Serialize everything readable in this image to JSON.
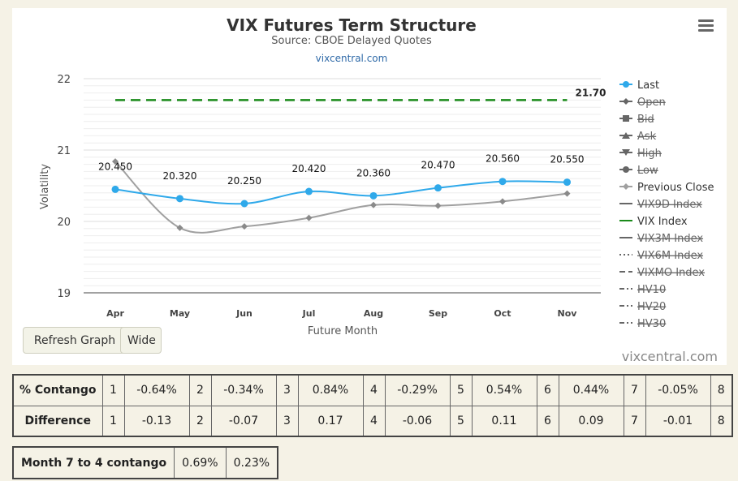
{
  "chart_data": {
    "type": "line",
    "title": "VIX Futures Term Structure",
    "subtitle": "Source: CBOE Delayed Quotes",
    "credit_link": "vixcentral.com",
    "watermark": "vixcentral.com",
    "xlabel": "Future Month",
    "ylabel": "Volatility",
    "categories": [
      "Apr",
      "May",
      "Jun",
      "Jul",
      "Aug",
      "Sep",
      "Oct",
      "Nov"
    ],
    "ylim": [
      19,
      22
    ],
    "yticks": [
      19,
      20,
      21,
      22
    ],
    "grid": true,
    "legend_position": "right",
    "series": [
      {
        "name": "Last",
        "values": [
          20.45,
          20.32,
          20.25,
          20.42,
          20.36,
          20.47,
          20.56,
          20.55
        ],
        "labels": [
          "20.450",
          "20.320",
          "20.250",
          "20.420",
          "20.360",
          "20.470",
          "20.560",
          "20.550"
        ],
        "color": "#2fa9ea"
      },
      {
        "name": "Previous Close",
        "values": [
          20.84,
          19.91,
          19.93,
          20.05,
          20.23,
          20.22,
          20.28,
          20.39
        ],
        "color": "#a0a0a0"
      },
      {
        "name": "VIX Index",
        "value": 21.7,
        "value_label": "21.70",
        "color": "#1a8a1a"
      }
    ],
    "legend": [
      {
        "name": "Last",
        "symbol": "circle",
        "style": "solid",
        "color": "#2fa9ea",
        "hidden": false
      },
      {
        "name": "Open",
        "symbol": "diamond",
        "style": "solid",
        "color": "#666666",
        "hidden": true
      },
      {
        "name": "Bid",
        "symbol": "square",
        "style": "solid",
        "color": "#666666",
        "hidden": true
      },
      {
        "name": "Ask",
        "symbol": "triangle",
        "style": "solid",
        "color": "#666666",
        "hidden": true
      },
      {
        "name": "High",
        "symbol": "triangle-down",
        "style": "solid",
        "color": "#666666",
        "hidden": true
      },
      {
        "name": "Low",
        "symbol": "circle",
        "style": "solid",
        "color": "#666666",
        "hidden": true
      },
      {
        "name": "Previous Close",
        "symbol": "diamond",
        "style": "solid",
        "color": "#a0a0a0",
        "hidden": false
      },
      {
        "name": "VIX9D Index",
        "symbol": "none",
        "style": "solid",
        "color": "#666666",
        "hidden": true
      },
      {
        "name": "VIX Index",
        "symbol": "none",
        "style": "solid",
        "color": "#1a8a1a",
        "hidden": false
      },
      {
        "name": "VIX3M Index",
        "symbol": "none",
        "style": "solid",
        "color": "#666666",
        "hidden": true
      },
      {
        "name": "VIX6M Index",
        "symbol": "none",
        "style": "dotted",
        "color": "#666666",
        "hidden": true
      },
      {
        "name": "VIXMO Index",
        "symbol": "none",
        "style": "dashed",
        "color": "#666666",
        "hidden": true
      },
      {
        "name": "HV10",
        "symbol": "none",
        "style": "dashdot",
        "color": "#666666",
        "hidden": true
      },
      {
        "name": "HV20",
        "symbol": "none",
        "style": "dashdot",
        "color": "#666666",
        "hidden": true
      },
      {
        "name": "HV30",
        "symbol": "none",
        "style": "dashdot",
        "color": "#666666",
        "hidden": true
      }
    ]
  },
  "buttons": {
    "refresh": "Refresh Graph",
    "wide": "Wide"
  },
  "contango_table": {
    "rows": [
      {
        "label": "% Contango",
        "cells": [
          {
            "idx": "1",
            "val": "-0.64%"
          },
          {
            "idx": "2",
            "val": "-0.34%"
          },
          {
            "idx": "3",
            "val": "0.84%"
          },
          {
            "idx": "4",
            "val": "-0.29%"
          },
          {
            "idx": "5",
            "val": "0.54%"
          },
          {
            "idx": "6",
            "val": "0.44%"
          },
          {
            "idx": "7",
            "val": "-0.05%"
          }
        ],
        "last_idx": "8"
      },
      {
        "label": "Difference",
        "cells": [
          {
            "idx": "1",
            "val": "-0.13"
          },
          {
            "idx": "2",
            "val": "-0.07"
          },
          {
            "idx": "3",
            "val": "0.17"
          },
          {
            "idx": "4",
            "val": "-0.06"
          },
          {
            "idx": "5",
            "val": "0.11"
          },
          {
            "idx": "6",
            "val": "0.09"
          },
          {
            "idx": "7",
            "val": "-0.01"
          }
        ],
        "last_idx": "8"
      }
    ]
  },
  "summary_table": {
    "label": "Month 7 to 4 contango",
    "v1": "0.69%",
    "v2": "0.23%"
  }
}
